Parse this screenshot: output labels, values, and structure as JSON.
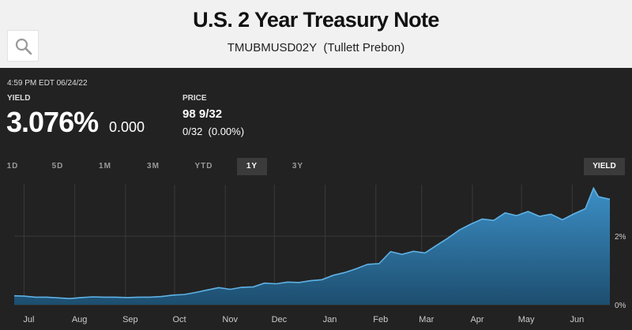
{
  "header": {
    "title": "U.S. 2 Year Treasury Note",
    "subtitle": "TMUBMUSD02Y  (Tullett Prebon)",
    "search_icon": "search-icon"
  },
  "quote": {
    "timestamp": "4:59 PM EDT 06/24/22",
    "yield_label": "YIELD",
    "yield_value": "3.076%",
    "yield_change": "0.000",
    "price_label": "PRICE",
    "price_value": "98 9/32",
    "price_change": "0/32  (0.00%)"
  },
  "range_tabs": [
    "1D",
    "5D",
    "1M",
    "3M",
    "YTD",
    "1Y",
    "3Y"
  ],
  "active_range": "1Y",
  "toggle_label": "YIELD",
  "colors": {
    "area_top": "#3c8fc6",
    "area_bottom": "#1d4e6f",
    "line": "#5fb2e6",
    "grid": "#3a3a3a",
    "header_bg": "#f1f1f1",
    "panel_bg": "#222222"
  },
  "chart_data": {
    "type": "area",
    "x_ticks": [
      "Jul",
      "Aug",
      "Sep",
      "Oct",
      "Nov",
      "Dec",
      "Jan",
      "Feb",
      "Mar",
      "Apr",
      "May",
      "Jun"
    ],
    "y_ticks": [
      "2%",
      "0%"
    ],
    "y_tick_values": [
      2,
      0
    ],
    "ylim": [
      0,
      3.5
    ],
    "grid": true,
    "y_axis_side": "right",
    "x": [
      "2021-06-25",
      "2021-07-01",
      "2021-07-08",
      "2021-07-15",
      "2021-07-22",
      "2021-07-29",
      "2021-08-05",
      "2021-08-12",
      "2021-08-19",
      "2021-08-26",
      "2021-09-02",
      "2021-09-09",
      "2021-09-16",
      "2021-09-23",
      "2021-09-30",
      "2021-10-07",
      "2021-10-14",
      "2021-10-21",
      "2021-10-28",
      "2021-11-04",
      "2021-11-11",
      "2021-11-18",
      "2021-11-25",
      "2021-12-02",
      "2021-12-09",
      "2021-12-16",
      "2021-12-23",
      "2021-12-30",
      "2022-01-06",
      "2022-01-13",
      "2022-01-20",
      "2022-01-27",
      "2022-02-03",
      "2022-02-10",
      "2022-02-17",
      "2022-02-24",
      "2022-03-03",
      "2022-03-10",
      "2022-03-17",
      "2022-03-24",
      "2022-03-31",
      "2022-04-07",
      "2022-04-14",
      "2022-04-21",
      "2022-04-28",
      "2022-05-05",
      "2022-05-12",
      "2022-05-19",
      "2022-05-26",
      "2022-06-02",
      "2022-06-09",
      "2022-06-14",
      "2022-06-17",
      "2022-06-24"
    ],
    "y": [
      0.26,
      0.25,
      0.22,
      0.22,
      0.2,
      0.18,
      0.21,
      0.23,
      0.22,
      0.22,
      0.21,
      0.22,
      0.22,
      0.24,
      0.28,
      0.3,
      0.36,
      0.43,
      0.5,
      0.45,
      0.51,
      0.52,
      0.63,
      0.61,
      0.66,
      0.65,
      0.7,
      0.73,
      0.86,
      0.94,
      1.05,
      1.18,
      1.2,
      1.55,
      1.47,
      1.56,
      1.51,
      1.73,
      1.94,
      2.18,
      2.35,
      2.5,
      2.46,
      2.68,
      2.6,
      2.72,
      2.58,
      2.64,
      2.48,
      2.65,
      2.8,
      3.4,
      3.15,
      3.076
    ]
  }
}
